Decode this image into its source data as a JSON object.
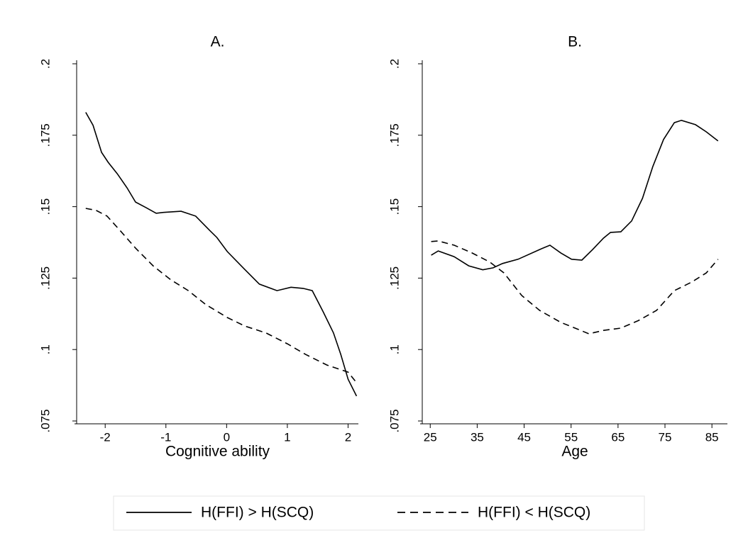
{
  "chart_data": [
    {
      "type": "line",
      "title": "A.",
      "xlabel": "Cognitive ability",
      "xlim": [
        -2.47,
        2.17
      ],
      "ylim": [
        0.075,
        0.2
      ],
      "xticks": [
        -2,
        -1,
        0,
        1,
        2
      ],
      "yticks": [
        {
          "value": 0.075,
          "label": ".075"
        },
        {
          "value": 0.1,
          "label": ".1"
        },
        {
          "value": 0.125,
          "label": ".125"
        },
        {
          "value": 0.15,
          "label": ".15"
        },
        {
          "value": 0.175,
          "label": ".175"
        },
        {
          "value": 0.2,
          "label": ".2"
        }
      ],
      "series": [
        {
          "name": "H(FFI) > H(SCQ)",
          "color": "#000000",
          "dashed": false,
          "x": [
            -2.32,
            -2.2,
            -2.06,
            -1.95,
            -1.8,
            -1.64,
            -1.5,
            -1.33,
            -1.16,
            -1.04,
            -0.75,
            -0.51,
            -0.28,
            -0.16,
            0.01,
            0.3,
            0.54,
            0.83,
            1.06,
            1.26,
            1.41,
            1.59,
            1.76,
            1.88,
            2.0,
            2.14
          ],
          "values": [
            0.183,
            0.1785,
            0.169,
            0.1655,
            0.1615,
            0.1566,
            0.1516,
            0.1497,
            0.1477,
            0.148,
            0.1484,
            0.1467,
            0.1417,
            0.1392,
            0.1343,
            0.128,
            0.1229,
            0.1206,
            0.1218,
            0.1214,
            0.1206,
            0.1132,
            0.1058,
            0.0983,
            0.0896,
            0.0837
          ]
        },
        {
          "name": "H(FFI) < H(SCQ)",
          "color": "#000000",
          "dashed": true,
          "x": [
            -2.32,
            -2.15,
            -1.97,
            -1.74,
            -1.5,
            -1.21,
            -0.92,
            -0.63,
            -0.34,
            0.01,
            0.3,
            0.65,
            1.0,
            1.3,
            1.65,
            2.0,
            2.14
          ],
          "values": [
            0.1494,
            0.1487,
            0.1467,
            0.1413,
            0.1355,
            0.1293,
            0.1244,
            0.1206,
            0.1157,
            0.1112,
            0.1082,
            0.1058,
            0.102,
            0.0983,
            0.0946,
            0.0921,
            0.0884
          ]
        }
      ]
    },
    {
      "type": "line",
      "title": "B.",
      "xlabel": "Age",
      "xlim": [
        23.3,
        88.3
      ],
      "ylim": [
        0.075,
        0.2
      ],
      "xticks": [
        25,
        35,
        45,
        55,
        65,
        75,
        85
      ],
      "yticks": [
        {
          "value": 0.075,
          "label": ".075"
        },
        {
          "value": 0.1,
          "label": ".1"
        },
        {
          "value": 0.125,
          "label": ".125"
        },
        {
          "value": 0.15,
          "label": ".15"
        },
        {
          "value": 0.175,
          "label": ".175"
        },
        {
          "value": 0.2,
          "label": ".2"
        }
      ],
      "series": [
        {
          "color": "#000000",
          "dashed": false,
          "x": [
            25.2,
            26.7,
            30.1,
            33.2,
            36.2,
            38.4,
            40.4,
            43.7,
            48.3,
            50.5,
            52.8,
            55.1,
            57.3,
            59.6,
            61.9,
            63.4,
            65.6,
            67.9,
            70.2,
            72.4,
            74.7,
            77.0,
            78.5,
            81.5,
            83.8,
            86.3
          ],
          "values": [
            0.133,
            0.1345,
            0.1325,
            0.1293,
            0.1279,
            0.1286,
            0.1301,
            0.1316,
            0.135,
            0.1365,
            0.1338,
            0.1316,
            0.1313,
            0.135,
            0.139,
            0.141,
            0.1412,
            0.145,
            0.1529,
            0.164,
            0.1735,
            0.1794,
            0.1802,
            0.1787,
            0.1762,
            0.173
          ]
        },
        {
          "color": "#000000",
          "dashed": true,
          "x": [
            25.2,
            26.7,
            30.1,
            33.9,
            37.7,
            40.7,
            44.5,
            48.3,
            52.8,
            56.6,
            58.8,
            61.9,
            65.6,
            69.4,
            73.2,
            77.0,
            80.7,
            83.8,
            86.3
          ],
          "values": [
            0.1378,
            0.138,
            0.1365,
            0.1338,
            0.1306,
            0.1268,
            0.1189,
            0.1137,
            0.1095,
            0.107,
            0.1055,
            0.1067,
            0.1075,
            0.1102,
            0.1137,
            0.1206,
            0.1236,
            0.1268,
            0.1316
          ]
        }
      ]
    }
  ]
}
